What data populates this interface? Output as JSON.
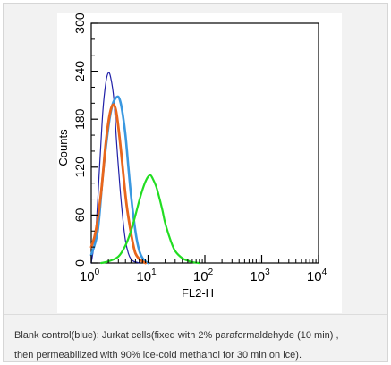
{
  "chart_data": {
    "type": "line",
    "xlabel": "FL2-H",
    "ylabel": "Counts",
    "xscale": "log",
    "xlim": [
      1,
      10000
    ],
    "ylim": [
      0,
      300
    ],
    "x_ticks": [
      {
        "value": 1,
        "base": "10",
        "exp": "0"
      },
      {
        "value": 10,
        "base": "10",
        "exp": "1"
      },
      {
        "value": 100,
        "base": "10",
        "exp": "2"
      },
      {
        "value": 1000,
        "base": "10",
        "exp": "3"
      },
      {
        "value": 10000,
        "base": "10",
        "exp": "4"
      }
    ],
    "y_ticks": [
      "0",
      "60",
      "120",
      "180",
      "240",
      "300"
    ],
    "grid": false,
    "series": [
      {
        "color": "#1f1fa8",
        "x": [
          1,
          1.2,
          1.4,
          1.6,
          1.8,
          2.0,
          2.2,
          2.5,
          2.8,
          3.2,
          3.6,
          4.0,
          4.5,
          5.0,
          5.6,
          6.3,
          7.0
        ],
        "y": [
          0,
          40,
          120,
          190,
          225,
          238,
          232,
          205,
          150,
          95,
          55,
          28,
          12,
          5,
          2,
          1,
          0
        ]
      },
      {
        "color": "#3a98e0",
        "x": [
          1,
          1.3,
          1.6,
          2.0,
          2.3,
          2.6,
          3.0,
          3.3,
          3.6,
          4.0,
          4.5,
          5.0,
          5.6,
          6.3,
          7.1,
          8.0,
          9.0,
          10
        ],
        "y": [
          10,
          40,
          110,
          170,
          195,
          205,
          208,
          200,
          185,
          160,
          120,
          85,
          55,
          30,
          14,
          6,
          2,
          0
        ]
      },
      {
        "color": "#e8661c",
        "x": [
          1,
          1.2,
          1.5,
          1.8,
          2.1,
          2.4,
          2.7,
          3.0,
          3.4,
          3.8,
          4.2,
          4.8,
          5.4,
          6.0,
          7.0,
          8.0,
          9.0
        ],
        "y": [
          20,
          40,
          90,
          150,
          185,
          198,
          192,
          170,
          135,
          100,
          72,
          45,
          25,
          12,
          5,
          2,
          0
        ]
      },
      {
        "color": "#22dd22",
        "x": [
          1.5,
          2,
          3,
          4,
          5,
          6,
          7,
          8,
          9,
          10,
          11,
          12,
          14,
          16,
          18,
          20,
          25,
          30,
          40,
          50,
          60,
          80
        ],
        "y": [
          0,
          2,
          8,
          22,
          40,
          60,
          78,
          92,
          102,
          108,
          110,
          106,
          95,
          80,
          65,
          50,
          28,
          15,
          6,
          3,
          1,
          0
        ]
      }
    ]
  },
  "caption": {
    "line1": "Blank control(blue): Jurkat cells(fixed with 2% paraformaldehyde (10 min) ,",
    "line2": "then permeabilized with 90% ice-cold methanol for 30 min on ice)."
  }
}
